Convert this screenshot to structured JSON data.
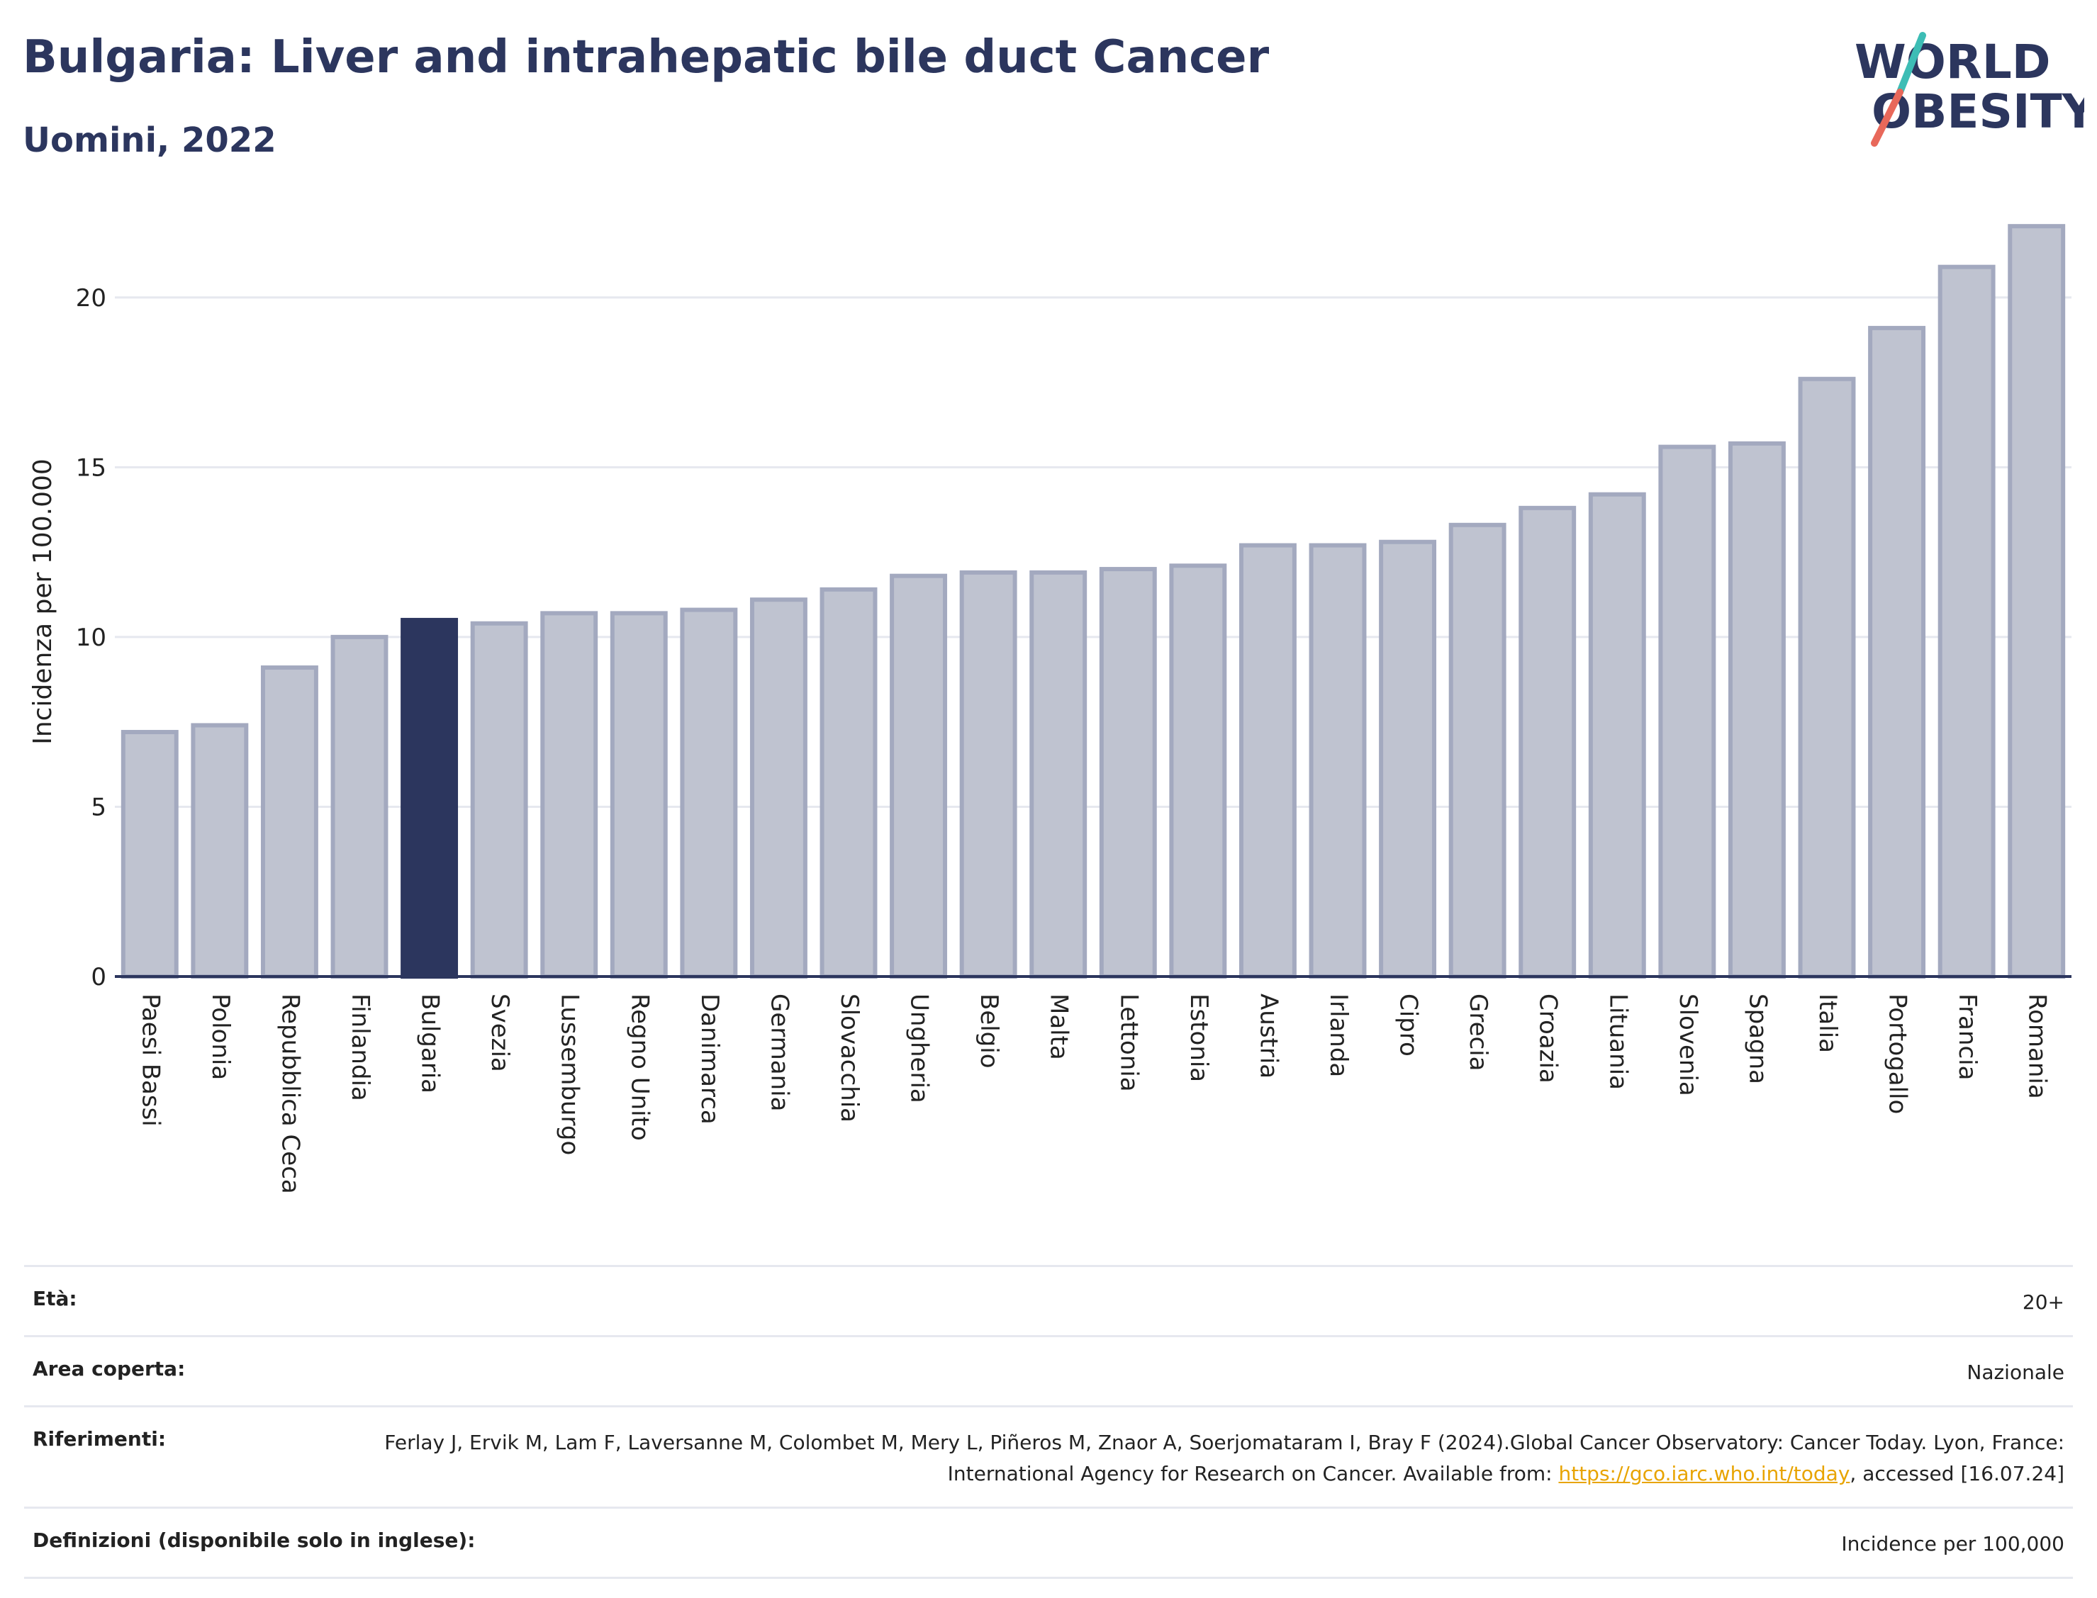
{
  "header": {
    "title": "Bulgaria: Liver and intrahepatic bile duct Cancer",
    "subtitle": "Uomini, 2022"
  },
  "logo": {
    "line1": "WORLD",
    "line2": "OBESITY",
    "colors": {
      "text": "#2c365e",
      "slash_top": "#3dbdb5",
      "slash_bottom": "#e8685a"
    }
  },
  "chart_data": {
    "type": "bar",
    "title": "Bulgaria: Liver and intrahepatic bile duct Cancer",
    "subtitle": "Uomini, 2022",
    "ylabel": "Incidenza per 100.000",
    "xlabel": "",
    "ylim": [
      0,
      22.5
    ],
    "yticks": [
      0,
      5,
      10,
      15,
      20
    ],
    "grid": true,
    "highlight": "Bulgaria",
    "colors": {
      "bar": "#bfc3d0",
      "bar_border": "#a3a9bf",
      "highlight": "#2c365e",
      "axis": "#2c365e",
      "grid": "#e6e8ef"
    },
    "categories": [
      "Paesi Bassi",
      "Polonia",
      "Repubblica Ceca",
      "Finlandia",
      "Bulgaria",
      "Svezia",
      "Lussemburgo",
      "Regno Unito",
      "Danimarca",
      "Germania",
      "Slovacchia",
      "Ungheria",
      "Belgio",
      "Malta",
      "Lettonia",
      "Estonia",
      "Austria",
      "Irlanda",
      "Cipro",
      "Grecia",
      "Croazia",
      "Lituania",
      "Slovenia",
      "Spagna",
      "Italia",
      "Portogallo",
      "Francia",
      "Romania"
    ],
    "values": [
      7.2,
      7.4,
      9.1,
      10.0,
      10.5,
      10.4,
      10.7,
      10.7,
      10.8,
      11.1,
      11.4,
      11.8,
      11.9,
      11.9,
      12.0,
      12.1,
      12.7,
      12.7,
      12.8,
      13.3,
      13.8,
      14.2,
      15.6,
      15.7,
      17.6,
      19.1,
      20.9,
      22.1
    ]
  },
  "meta": [
    {
      "label": "Età:",
      "value": "20+"
    },
    {
      "label": "Area coperta:",
      "value": "Nazionale"
    },
    {
      "label": "Riferimenti:",
      "value_before": "Ferlay J, Ervik M, Lam F, Laversanne M, Colombet M, Mery L, Piñeros M, Znaor A, Soerjomataram I, Bray F (2024).Global Cancer Observatory: Cancer Today. Lyon, France: International Agency for Research on Cancer. Available from: ",
      "link": "https://gco.iarc.who.int/today",
      "value_after": ", accessed [16.07.24]"
    },
    {
      "label": "Definizioni (disponibile solo in inglese):",
      "value": "Incidence per 100,000"
    }
  ]
}
